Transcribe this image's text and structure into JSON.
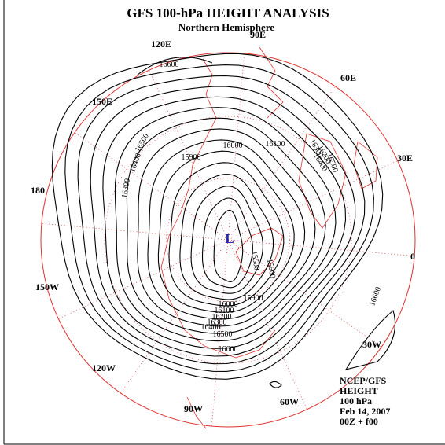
{
  "header": {
    "title": "GFS 100-hPa HEIGHT ANALYSIS",
    "subtitle": "Northern Hemisphere"
  },
  "longitude_labels": [
    "90E",
    "120E",
    "60E",
    "150E",
    "30E",
    "180",
    "0",
    "150W",
    "30W",
    "120W",
    "90W",
    "60W"
  ],
  "contour_labels": [
    "16600",
    "16500",
    "16400",
    "16300",
    "16000",
    "16100",
    "15900",
    "16300",
    "16200",
    "16400",
    "16500",
    "16600",
    "15900",
    "16000",
    "16100",
    "16200",
    "16300",
    "16400",
    "16500",
    "16600",
    "15500",
    "15600"
  ],
  "low_marker": "L",
  "info": [
    "NCEP/GFS",
    "HEIGHT",
    "100 hPa",
    "Feb 14, 2007",
    "00Z + f00"
  ]
}
